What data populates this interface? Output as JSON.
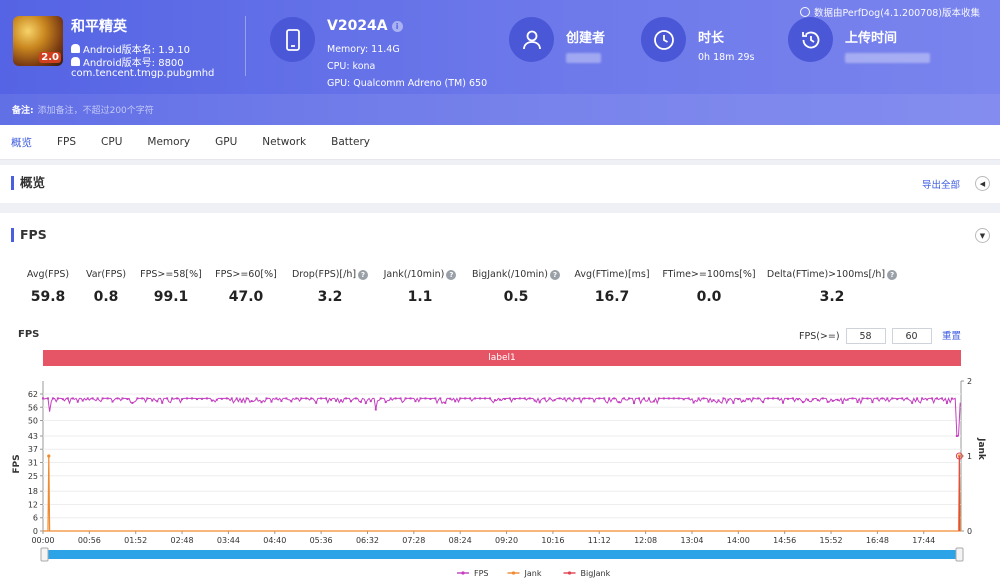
{
  "app": {
    "name": "和平精英",
    "version_name": "Android版本名: 1.9.10",
    "version_code": "Android版本号: 8800",
    "package": "com.tencent.tmgp.pubgmhd",
    "icon_badge": "2.0"
  },
  "device": {
    "name": "V2024A",
    "info_mark": "i",
    "memory": "Memory: 11.4G",
    "cpu": "CPU: kona",
    "gpu": "GPU: Qualcomm Adreno (TM) 650"
  },
  "meta": {
    "creator_label": "创建者",
    "duration_label": "时长",
    "duration_value": "0h 18m 29s",
    "upload_label": "上传时间"
  },
  "source_note": "数据由PerfDog(4.1.200708)版本收集",
  "remark": {
    "label": "备注:",
    "placeholder": "添加备注，不超过200个字符"
  },
  "tabs": [
    "概览",
    "FPS",
    "CPU",
    "Memory",
    "GPU",
    "Network",
    "Battery"
  ],
  "overview": {
    "title": "概览",
    "export_label": "导出全部"
  },
  "fps_section": {
    "title": "FPS",
    "help_mark": "?",
    "metrics": [
      {
        "label": "Avg(FPS)",
        "value": "59.8",
        "help": false
      },
      {
        "label": "Var(FPS)",
        "value": "0.8",
        "help": false
      },
      {
        "label": "FPS>=58[%]",
        "value": "99.1",
        "help": false
      },
      {
        "label": "FPS>=60[%]",
        "value": "47.0",
        "help": false
      },
      {
        "label": "Drop(FPS)[/h]",
        "value": "3.2",
        "help": true
      },
      {
        "label": "Jank(/10min)",
        "value": "1.1",
        "help": true
      },
      {
        "label": "BigJank(/10min)",
        "value": "0.5",
        "help": true
      },
      {
        "label": "Avg(FTime)[ms]",
        "value": "16.7",
        "help": false
      },
      {
        "label": "FTime>=100ms[%]",
        "value": "0.0",
        "help": false
      },
      {
        "label": "Delta(FTime)>100ms[/h]",
        "value": "3.2",
        "help": true
      }
    ],
    "chart_title": "FPS",
    "threshold_label": "FPS(>=)",
    "threshold_1": "58",
    "threshold_2": "60",
    "reset_label": "重置",
    "band_label": "label1"
  },
  "chart_data": {
    "type": "line",
    "title": "FPS",
    "ylabel": "FPS",
    "y2label": "Jank",
    "y_ticks": [
      0,
      6,
      12,
      18,
      25,
      31,
      37,
      43,
      50,
      56,
      62
    ],
    "ylim": [
      0,
      62
    ],
    "y2_ticks": [
      0,
      1,
      2
    ],
    "y2lim": [
      0,
      2
    ],
    "x_ticks": [
      "00:00",
      "00:56",
      "01:52",
      "02:48",
      "03:44",
      "04:40",
      "05:36",
      "06:32",
      "07:28",
      "08:24",
      "09:20",
      "10:16",
      "11:12",
      "12:08",
      "13:04",
      "14:00",
      "14:56",
      "15:52",
      "16:48",
      "17:44"
    ],
    "x_range_seconds": [
      0,
      1109
    ],
    "legend_position": "bottom-center",
    "series": [
      {
        "name": "FPS",
        "color": "#c43fc0",
        "axis": "left",
        "typical_value": 60,
        "range": [
          57,
          61
        ],
        "dips": [
          {
            "t": 8,
            "value": 54
          },
          {
            "t": 402,
            "value": 55
          },
          {
            "t": 1105,
            "value": 43
          }
        ]
      },
      {
        "name": "Jank",
        "color": "#f08a30",
        "axis": "right",
        "baseline": 0,
        "spikes": [
          {
            "t": 7,
            "value": 1
          },
          {
            "t": 1107,
            "value": 1
          }
        ]
      },
      {
        "name": "BigJank",
        "color": "#e04050",
        "axis": "right",
        "baseline": 0,
        "spikes": [
          {
            "t": 1107,
            "value": 1
          }
        ]
      }
    ]
  }
}
